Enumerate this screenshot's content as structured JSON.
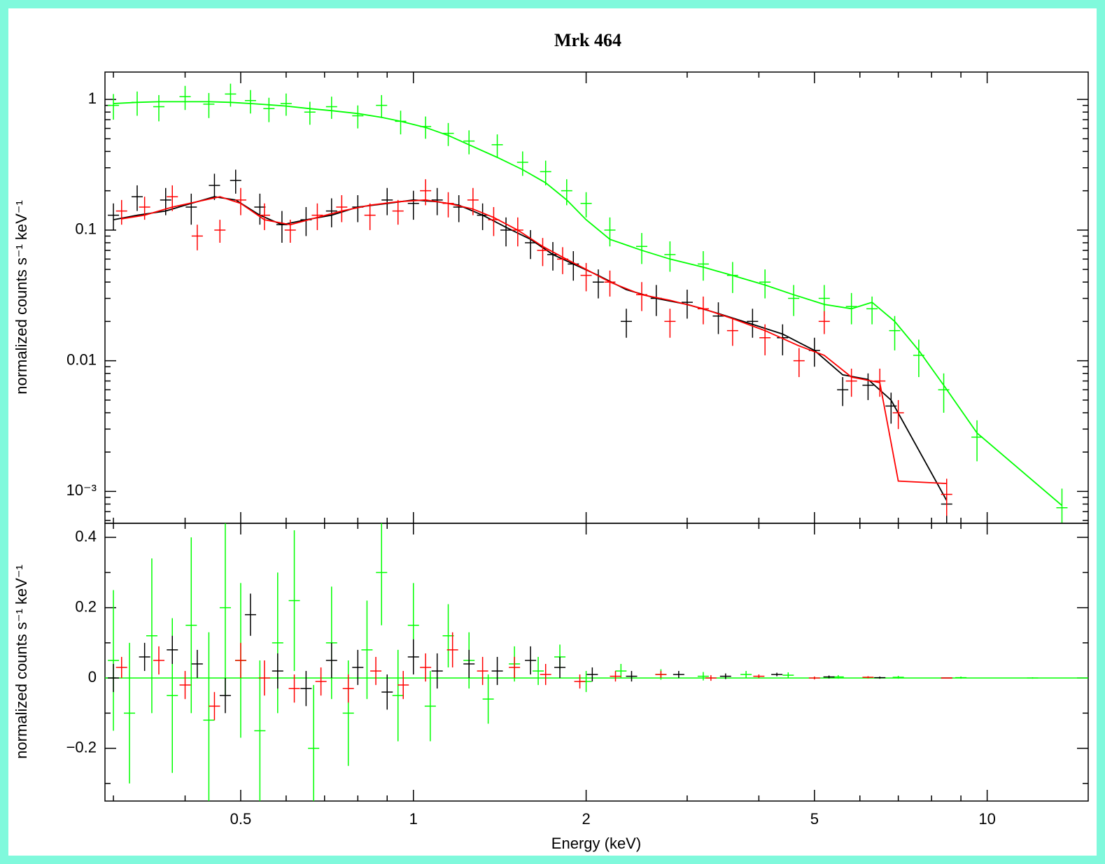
{
  "chart_data": [
    {
      "type": "errorbar",
      "title": "Mrk 464",
      "ylabel": "normalized counts s⁻¹ keV⁻¹",
      "xscale": "log",
      "yscale": "log",
      "xlim": [
        0.29,
        15
      ],
      "ylim": [
        0.00057,
        1.62
      ],
      "xminorticks": [
        0.3,
        0.4,
        0.6,
        0.7,
        0.8,
        0.9,
        3,
        4,
        6,
        7,
        8,
        9
      ],
      "yticks": [
        {
          "value": 1,
          "label": "1"
        },
        {
          "value": 0.1,
          "label": "0.1"
        },
        {
          "value": 0.01,
          "label": "0.01"
        },
        {
          "value": 0.001,
          "label": "10⁻³"
        }
      ],
      "yminorticks": [
        0.0006,
        0.0007,
        0.0008,
        0.0009,
        0.002,
        0.003,
        0.004,
        0.005,
        0.006,
        0.007,
        0.008,
        0.009,
        0.02,
        0.03,
        0.04,
        0.05,
        0.06,
        0.07,
        0.08,
        0.09,
        0.2,
        0.3,
        0.4,
        0.5,
        0.6,
        0.7,
        0.8,
        0.9
      ],
      "series": [
        {
          "color": "#00ff00",
          "x": [
            0.3,
            0.33,
            0.36,
            0.4,
            0.44,
            0.48,
            0.52,
            0.56,
            0.6,
            0.66,
            0.72,
            0.8,
            0.88,
            0.95,
            1.05,
            1.15,
            1.25,
            1.4,
            1.55,
            1.7,
            1.85,
            2.0,
            2.2,
            2.5,
            2.8,
            3.2,
            3.6,
            4.1,
            4.6,
            5.2,
            5.8,
            6.3,
            6.9,
            7.6,
            8.4,
            9.6,
            13.5
          ],
          "values": [
            0.9,
            0.95,
            0.88,
            1.05,
            0.92,
            1.1,
            0.98,
            0.85,
            0.93,
            0.8,
            0.88,
            0.75,
            0.9,
            0.68,
            0.62,
            0.55,
            0.48,
            0.45,
            0.33,
            0.28,
            0.2,
            0.16,
            0.1,
            0.075,
            0.065,
            0.055,
            0.045,
            0.04,
            0.03,
            0.03,
            0.026,
            0.025,
            0.017,
            0.011,
            0.006,
            0.0026,
            0.00075
          ],
          "errors": [
            0.2,
            0.2,
            0.2,
            0.22,
            0.2,
            0.22,
            0.2,
            0.18,
            0.18,
            0.16,
            0.17,
            0.15,
            0.18,
            0.14,
            0.12,
            0.11,
            0.1,
            0.09,
            0.07,
            0.06,
            0.045,
            0.035,
            0.025,
            0.02,
            0.017,
            0.014,
            0.012,
            0.01,
            0.008,
            0.008,
            0.007,
            0.006,
            0.005,
            0.0035,
            0.002,
            0.0009,
            0.0003
          ],
          "model": [
            0.93,
            0.95,
            0.96,
            0.96,
            0.96,
            0.95,
            0.93,
            0.91,
            0.89,
            0.85,
            0.82,
            0.78,
            0.73,
            0.68,
            0.61,
            0.53,
            0.45,
            0.36,
            0.29,
            0.23,
            0.17,
            0.12,
            0.085,
            0.07,
            0.06,
            0.052,
            0.045,
            0.038,
            0.032,
            0.027,
            0.025,
            0.028,
            0.02,
            0.012,
            0.0065,
            0.0028,
            0.00078
          ]
        },
        {
          "color": "#000000",
          "x": [
            0.3,
            0.33,
            0.37,
            0.41,
            0.45,
            0.49,
            0.54,
            0.59,
            0.65,
            0.72,
            0.8,
            0.9,
            1.0,
            1.1,
            1.2,
            1.32,
            1.45,
            1.6,
            1.75,
            1.9,
            2.1,
            2.35,
            2.65,
            3.0,
            3.4,
            3.9,
            4.4,
            5.0,
            5.6,
            6.2,
            6.8,
            8.5
          ],
          "values": [
            0.13,
            0.18,
            0.17,
            0.15,
            0.22,
            0.24,
            0.15,
            0.11,
            0.12,
            0.14,
            0.15,
            0.17,
            0.16,
            0.17,
            0.15,
            0.13,
            0.1,
            0.08,
            0.065,
            0.055,
            0.04,
            0.02,
            0.03,
            0.028,
            0.022,
            0.02,
            0.015,
            0.012,
            0.006,
            0.0065,
            0.0045,
            0.0008
          ],
          "errors": [
            0.03,
            0.04,
            0.04,
            0.04,
            0.05,
            0.05,
            0.04,
            0.03,
            0.03,
            0.035,
            0.035,
            0.04,
            0.04,
            0.04,
            0.035,
            0.03,
            0.025,
            0.02,
            0.016,
            0.014,
            0.01,
            0.005,
            0.008,
            0.007,
            0.006,
            0.005,
            0.004,
            0.003,
            0.0015,
            0.0015,
            0.0012,
            0.0003
          ],
          "model": [
            0.12,
            0.13,
            0.14,
            0.16,
            0.18,
            0.17,
            0.13,
            0.11,
            0.12,
            0.13,
            0.15,
            0.16,
            0.17,
            0.165,
            0.155,
            0.13,
            0.105,
            0.085,
            0.065,
            0.055,
            0.045,
            0.035,
            0.03,
            0.027,
            0.023,
            0.019,
            0.016,
            0.012,
            0.0078,
            0.0072,
            0.005,
            0.00085
          ]
        },
        {
          "color": "#ff0000",
          "x": [
            0.31,
            0.34,
            0.38,
            0.42,
            0.46,
            0.5,
            0.55,
            0.61,
            0.68,
            0.75,
            0.84,
            0.94,
            1.05,
            1.15,
            1.27,
            1.38,
            1.52,
            1.68,
            1.82,
            2.0,
            2.2,
            2.5,
            2.8,
            3.2,
            3.6,
            4.1,
            4.7,
            5.2,
            5.8,
            6.5,
            7.0,
            8.5
          ],
          "values": [
            0.14,
            0.15,
            0.18,
            0.09,
            0.1,
            0.17,
            0.13,
            0.1,
            0.13,
            0.15,
            0.13,
            0.14,
            0.2,
            0.16,
            0.17,
            0.12,
            0.1,
            0.07,
            0.06,
            0.045,
            0.04,
            0.032,
            0.02,
            0.025,
            0.017,
            0.015,
            0.01,
            0.02,
            0.007,
            0.007,
            0.004,
            0.00095
          ],
          "errors": [
            0.03,
            0.03,
            0.04,
            0.02,
            0.02,
            0.04,
            0.03,
            0.02,
            0.03,
            0.035,
            0.03,
            0.03,
            0.045,
            0.035,
            0.04,
            0.03,
            0.025,
            0.017,
            0.014,
            0.011,
            0.009,
            0.008,
            0.005,
            0.006,
            0.004,
            0.004,
            0.0025,
            0.004,
            0.0017,
            0.0017,
            0.001,
            0.0003
          ],
          "model": [
            0.122,
            0.13,
            0.15,
            0.165,
            0.18,
            0.16,
            0.12,
            0.11,
            0.125,
            0.14,
            0.155,
            0.165,
            0.17,
            0.16,
            0.145,
            0.125,
            0.1,
            0.075,
            0.062,
            0.05,
            0.04,
            0.032,
            0.029,
            0.025,
            0.021,
            0.017,
            0.013,
            0.011,
            0.0075,
            0.0068,
            0.0012,
            0.00115
          ]
        }
      ]
    },
    {
      "type": "errorbar",
      "xlabel": "Energy (keV)",
      "ylabel": "normalized counts s⁻¹ keV⁻¹",
      "xscale": "log",
      "yscale": "linear",
      "xlim": [
        0.29,
        15
      ],
      "ylim": [
        -0.35,
        0.44
      ],
      "xticks": [
        0.5,
        1,
        2,
        5,
        10
      ],
      "xminorticks": [
        0.3,
        0.4,
        0.6,
        0.7,
        0.8,
        0.9,
        3,
        4,
        6,
        7,
        8,
        9
      ],
      "yticks": [
        0.4,
        0.2,
        0,
        {
          "value": -0.2,
          "label": "−0.2"
        }
      ],
      "yminorticks": [
        -0.3,
        -0.1,
        0.1,
        0.3
      ],
      "series": [
        {
          "color": "#00ff00",
          "x": [
            0.3,
            0.32,
            0.35,
            0.38,
            0.41,
            0.44,
            0.47,
            0.5,
            0.54,
            0.58,
            0.62,
            0.67,
            0.72,
            0.77,
            0.83,
            0.88,
            0.94,
            1.0,
            1.07,
            1.15,
            1.25,
            1.35,
            1.5,
            1.65,
            1.8,
            2.0,
            2.3,
            2.7,
            3.2,
            3.8,
            4.5,
            5.5,
            7,
            9,
            12
          ],
          "values": [
            0.05,
            -0.1,
            0.12,
            -0.05,
            0.15,
            -0.12,
            0.2,
            0.05,
            -0.15,
            0.1,
            0.22,
            -0.2,
            0.1,
            -0.1,
            0.08,
            0.3,
            -0.05,
            0.15,
            -0.08,
            0.12,
            0.05,
            -0.06,
            0.04,
            0.02,
            0.06,
            -0.01,
            0.02,
            0.01,
            0.005,
            0.01,
            0.008,
            0.003,
            0.002,
            0.001,
            0
          ],
          "errors": [
            0.2,
            0.2,
            0.22,
            0.22,
            0.25,
            0.25,
            0.25,
            0.22,
            0.2,
            0.2,
            0.2,
            0.18,
            0.16,
            0.15,
            0.14,
            0.15,
            0.13,
            0.12,
            0.1,
            0.09,
            0.08,
            0.07,
            0.05,
            0.04,
            0.035,
            0.03,
            0.02,
            0.015,
            0.012,
            0.01,
            0.008,
            0.005,
            0.004,
            0.003,
            0.002
          ]
        },
        {
          "color": "#000000",
          "x": [
            0.3,
            0.34,
            0.38,
            0.42,
            0.47,
            0.52,
            0.58,
            0.65,
            0.72,
            0.8,
            0.9,
            1.0,
            1.1,
            1.25,
            1.4,
            1.6,
            1.8,
            2.05,
            2.4,
            2.9,
            3.5,
            4.3,
            5.3,
            6.5,
            8.5
          ],
          "values": [
            0.0,
            0.06,
            0.08,
            0.04,
            -0.05,
            0.18,
            0.02,
            -0.03,
            0.05,
            0.03,
            -0.04,
            0.06,
            0.02,
            0.04,
            0.02,
            0.05,
            0.03,
            0.01,
            0.005,
            0.01,
            0.005,
            0.01,
            0.003,
            0.001,
            0
          ],
          "errors": [
            0.04,
            0.04,
            0.04,
            0.04,
            0.05,
            0.06,
            0.05,
            0.05,
            0.05,
            0.05,
            0.05,
            0.05,
            0.05,
            0.04,
            0.04,
            0.04,
            0.03,
            0.02,
            0.015,
            0.01,
            0.008,
            0.005,
            0.004,
            0.003,
            0.001
          ]
        },
        {
          "color": "#ff0000",
          "x": [
            0.31,
            0.36,
            0.4,
            0.45,
            0.5,
            0.55,
            0.62,
            0.69,
            0.77,
            0.86,
            0.96,
            1.05,
            1.17,
            1.32,
            1.5,
            1.7,
            1.95,
            2.25,
            2.7,
            3.3,
            4.0,
            5.0,
            6.2,
            8.5
          ],
          "values": [
            0.03,
            0.05,
            -0.02,
            -0.08,
            0.05,
            0.0,
            -0.03,
            -0.01,
            -0.03,
            0.02,
            -0.02,
            0.03,
            0.08,
            0.02,
            0.03,
            0.01,
            -0.01,
            0.005,
            0.01,
            0.0,
            0.005,
            0.0,
            0.002,
            0
          ],
          "errors": [
            0.03,
            0.04,
            0.04,
            0.04,
            0.05,
            0.05,
            0.04,
            0.04,
            0.04,
            0.04,
            0.04,
            0.04,
            0.05,
            0.04,
            0.03,
            0.03,
            0.02,
            0.015,
            0.01,
            0.008,
            0.005,
            0.004,
            0.003,
            0.001
          ]
        }
      ]
    }
  ]
}
